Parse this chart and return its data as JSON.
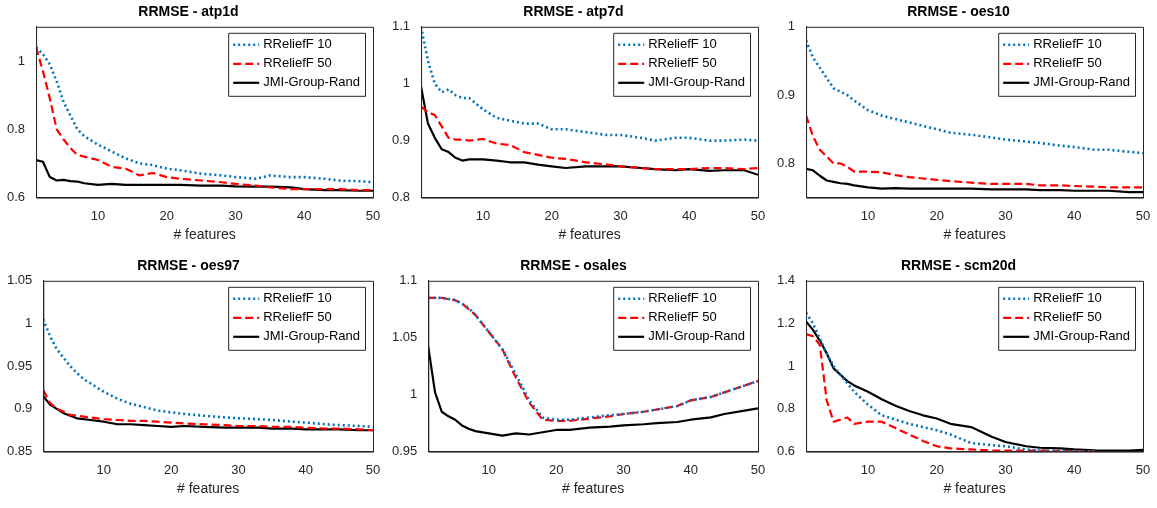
{
  "chart_data": [
    {
      "type": "line",
      "title": "RRMSE - atp1d",
      "xlabel": "# features",
      "x": [
        1,
        2,
        3,
        4,
        5,
        6,
        7,
        8,
        10,
        12,
        14,
        16,
        18,
        20,
        22,
        25,
        28,
        30,
        33,
        35,
        38,
        40,
        43,
        45,
        48,
        50
      ],
      "xlim": [
        1,
        50
      ],
      "xticks": [
        10,
        20,
        30,
        40,
        50
      ],
      "ylim": [
        0.6,
        1.1
      ],
      "yticks": [
        0.6,
        0.8,
        1
      ],
      "grid": false,
      "legend": "top right",
      "marker": "none",
      "series": [
        {
          "name": "RReliefF 10",
          "color": "#0072bd",
          "line_style": "dotted",
          "values": [
            1.04,
            1.02,
            0.99,
            0.94,
            0.88,
            0.84,
            0.8,
            0.78,
            0.755,
            0.735,
            0.715,
            0.7,
            0.695,
            0.685,
            0.68,
            0.67,
            0.665,
            0.66,
            0.655,
            0.665,
            0.66,
            0.66,
            0.655,
            0.65,
            0.648,
            0.645
          ]
        },
        {
          "name": "RReliefF 50",
          "color": "#ff0000",
          "line_style": "dashed",
          "values": [
            1.04,
            0.97,
            0.89,
            0.8,
            0.77,
            0.745,
            0.725,
            0.72,
            0.71,
            0.69,
            0.685,
            0.665,
            0.672,
            0.66,
            0.655,
            0.65,
            0.645,
            0.64,
            0.635,
            0.63,
            0.625,
            0.625,
            0.625,
            0.625,
            0.622,
            0.622
          ]
        },
        {
          "name": "JMI-Group-Rand",
          "color": "#000000",
          "line_style": "solid",
          "values": [
            0.71,
            0.705,
            0.66,
            0.65,
            0.652,
            0.648,
            0.647,
            0.642,
            0.637,
            0.64,
            0.637,
            0.637,
            0.637,
            0.637,
            0.637,
            0.635,
            0.635,
            0.633,
            0.632,
            0.632,
            0.63,
            0.625,
            0.622,
            0.622,
            0.62,
            0.62
          ]
        }
      ]
    },
    {
      "type": "line",
      "title": "RRMSE - atp7d",
      "xlabel": "# features",
      "x": [
        1,
        2,
        3,
        4,
        5,
        6,
        7,
        8,
        10,
        12,
        14,
        16,
        18,
        20,
        22,
        25,
        28,
        30,
        33,
        35,
        38,
        40,
        43,
        45,
        48,
        50
      ],
      "xlim": [
        1,
        50
      ],
      "xticks": [
        10,
        20,
        30,
        40,
        50
      ],
      "ylim": [
        0.8,
        1.1
      ],
      "yticks": [
        0.8,
        0.9,
        1,
        1.1
      ],
      "grid": false,
      "legend": "top right",
      "marker": "none",
      "series": [
        {
          "name": "RReliefF 10",
          "color": "#0072bd",
          "line_style": "dotted",
          "values": [
            1.1,
            1.04,
            1.0,
            0.985,
            0.99,
            0.98,
            0.975,
            0.975,
            0.955,
            0.94,
            0.935,
            0.93,
            0.93,
            0.92,
            0.92,
            0.915,
            0.91,
            0.91,
            0.905,
            0.9,
            0.905,
            0.905,
            0.9,
            0.9,
            0.902,
            0.9
          ]
        },
        {
          "name": "RReliefF 50",
          "color": "#ff0000",
          "line_style": "dashed",
          "values": [
            0.96,
            0.95,
            0.945,
            0.925,
            0.905,
            0.902,
            0.902,
            0.9,
            0.903,
            0.895,
            0.892,
            0.88,
            0.875,
            0.87,
            0.868,
            0.862,
            0.858,
            0.855,
            0.852,
            0.85,
            0.85,
            0.85,
            0.852,
            0.852,
            0.85,
            0.852
          ]
        },
        {
          "name": "JMI-Group-Rand",
          "color": "#000000",
          "line_style": "solid",
          "values": [
            0.995,
            0.93,
            0.905,
            0.885,
            0.88,
            0.87,
            0.865,
            0.867,
            0.867,
            0.865,
            0.862,
            0.862,
            0.858,
            0.855,
            0.852,
            0.855,
            0.855,
            0.855,
            0.852,
            0.85,
            0.848,
            0.85,
            0.847,
            0.848,
            0.848,
            0.84
          ]
        }
      ]
    },
    {
      "type": "line",
      "title": "RRMSE - oes10",
      "xlabel": "# features",
      "x": [
        1,
        2,
        3,
        4,
        5,
        6,
        7,
        8,
        10,
        12,
        14,
        16,
        18,
        20,
        22,
        25,
        28,
        30,
        33,
        35,
        38,
        40,
        43,
        45,
        48,
        50
      ],
      "xlim": [
        1,
        50
      ],
      "xticks": [
        10,
        20,
        30,
        40,
        50
      ],
      "ylim": [
        0.75,
        1
      ],
      "yticks": [
        0.8,
        0.9,
        1
      ],
      "grid": false,
      "legend": "top right",
      "marker": "none",
      "series": [
        {
          "name": "RReliefF 10",
          "color": "#0072bd",
          "line_style": "dotted",
          "values": [
            0.98,
            0.955,
            0.94,
            0.925,
            0.91,
            0.905,
            0.9,
            0.892,
            0.878,
            0.87,
            0.865,
            0.86,
            0.855,
            0.85,
            0.845,
            0.842,
            0.838,
            0.835,
            0.832,
            0.83,
            0.826,
            0.824,
            0.82,
            0.82,
            0.817,
            0.815
          ]
        },
        {
          "name": "RReliefF 50",
          "color": "#ff0000",
          "line_style": "dashed",
          "values": [
            0.87,
            0.84,
            0.82,
            0.81,
            0.8,
            0.8,
            0.795,
            0.788,
            0.788,
            0.787,
            0.783,
            0.78,
            0.778,
            0.776,
            0.774,
            0.772,
            0.77,
            0.77,
            0.77,
            0.768,
            0.768,
            0.767,
            0.766,
            0.765,
            0.765,
            0.765
          ]
        },
        {
          "name": "JMI-Group-Rand",
          "color": "#000000",
          "line_style": "solid",
          "values": [
            0.792,
            0.79,
            0.782,
            0.775,
            0.773,
            0.771,
            0.77,
            0.768,
            0.765,
            0.763,
            0.764,
            0.763,
            0.763,
            0.763,
            0.763,
            0.763,
            0.762,
            0.762,
            0.762,
            0.761,
            0.761,
            0.76,
            0.76,
            0.76,
            0.758,
            0.758
          ]
        }
      ]
    },
    {
      "type": "line",
      "title": "RRMSE - oes97",
      "xlabel": "# features",
      "x": [
        1,
        2,
        3,
        4,
        5,
        6,
        7,
        8,
        10,
        12,
        14,
        16,
        18,
        20,
        22,
        25,
        28,
        30,
        33,
        35,
        38,
        40,
        43,
        45,
        48,
        50
      ],
      "xlim": [
        1,
        50
      ],
      "xticks": [
        10,
        20,
        30,
        40,
        50
      ],
      "ylim": [
        0.85,
        1.05
      ],
      "yticks": [
        0.85,
        0.9,
        0.95,
        1,
        1.05
      ],
      "grid": false,
      "legend": "top right",
      "marker": "none",
      "series": [
        {
          "name": "RReliefF 10",
          "color": "#0072bd",
          "line_style": "dotted",
          "values": [
            1.005,
            0.985,
            0.97,
            0.96,
            0.95,
            0.942,
            0.935,
            0.93,
            0.92,
            0.912,
            0.906,
            0.902,
            0.898,
            0.896,
            0.894,
            0.892,
            0.89,
            0.889,
            0.888,
            0.887,
            0.885,
            0.884,
            0.882,
            0.881,
            0.88,
            0.879
          ]
        },
        {
          "name": "RReliefF 50",
          "color": "#ff0000",
          "line_style": "dashed",
          "values": [
            0.922,
            0.907,
            0.9,
            0.897,
            0.893,
            0.892,
            0.891,
            0.89,
            0.888,
            0.887,
            0.886,
            0.886,
            0.885,
            0.884,
            0.883,
            0.882,
            0.881,
            0.88,
            0.88,
            0.879,
            0.879,
            0.878,
            0.877,
            0.877,
            0.876,
            0.875
          ]
        },
        {
          "name": "JMI-Group-Rand",
          "color": "#000000",
          "line_style": "solid",
          "values": [
            0.915,
            0.905,
            0.9,
            0.895,
            0.892,
            0.889,
            0.888,
            0.887,
            0.885,
            0.882,
            0.882,
            0.881,
            0.88,
            0.879,
            0.88,
            0.879,
            0.878,
            0.878,
            0.878,
            0.877,
            0.877,
            0.876,
            0.876,
            0.876,
            0.875,
            0.875
          ]
        }
      ]
    },
    {
      "type": "line",
      "title": "RRMSE - osales",
      "xlabel": "# features",
      "x": [
        1,
        2,
        3,
        4,
        5,
        6,
        7,
        8,
        10,
        12,
        14,
        16,
        18,
        20,
        22,
        25,
        28,
        30,
        33,
        35,
        38,
        40,
        43,
        45,
        48,
        50
      ],
      "xlim": [
        1,
        50
      ],
      "xticks": [
        10,
        20,
        30,
        40,
        50
      ],
      "ylim": [
        0.95,
        1.1
      ],
      "yticks": [
        0.95,
        1,
        1.05,
        1.1
      ],
      "grid": false,
      "legend": "top right",
      "marker": "none",
      "series": [
        {
          "name": "RReliefF 10",
          "color": "#0072bd",
          "line_style": "dotted",
          "values": [
            1.085,
            1.085,
            1.085,
            1.084,
            1.083,
            1.08,
            1.076,
            1.07,
            1.055,
            1.04,
            1.018,
            0.995,
            0.98,
            0.978,
            0.978,
            0.98,
            0.982,
            0.983,
            0.985,
            0.987,
            0.99,
            0.995,
            0.998,
            1.002,
            1.008,
            1.012
          ]
        },
        {
          "name": "RReliefF 50",
          "color": "#ff0000",
          "line_style": "dashed",
          "values": [
            1.085,
            1.085,
            1.085,
            1.084,
            1.083,
            1.08,
            1.075,
            1.07,
            1.055,
            1.04,
            1.015,
            0.993,
            0.978,
            0.977,
            0.977,
            0.979,
            0.981,
            0.983,
            0.985,
            0.987,
            0.99,
            0.995,
            0.998,
            1.002,
            1.008,
            1.012
          ]
        },
        {
          "name": "JMI-Group-Rand",
          "color": "#000000",
          "line_style": "solid",
          "values": [
            1.042,
            1.002,
            0.985,
            0.981,
            0.978,
            0.973,
            0.97,
            0.968,
            0.966,
            0.964,
            0.966,
            0.965,
            0.967,
            0.969,
            0.969,
            0.971,
            0.972,
            0.973,
            0.974,
            0.975,
            0.976,
            0.978,
            0.98,
            0.983,
            0.986,
            0.988
          ]
        }
      ]
    },
    {
      "type": "line",
      "title": "RRMSE - scm20d",
      "xlabel": "# features",
      "x": [
        1,
        2,
        3,
        4,
        5,
        6,
        7,
        8,
        10,
        12,
        14,
        16,
        18,
        20,
        22,
        25,
        28,
        30,
        33,
        35,
        38,
        40,
        43,
        45,
        48,
        50
      ],
      "xlim": [
        1,
        50
      ],
      "xticks": [
        10,
        20,
        30,
        40,
        50
      ],
      "ylim": [
        0.6,
        1.4
      ],
      "yticks": [
        0.6,
        0.8,
        1,
        1.2,
        1.4
      ],
      "grid": false,
      "legend": "top right",
      "marker": "none",
      "series": [
        {
          "name": "RReliefF 10",
          "color": "#0072bd",
          "line_style": "dotted",
          "values": [
            1.25,
            1.2,
            1.13,
            1.06,
            1.0,
            0.96,
            0.92,
            0.88,
            0.82,
            0.77,
            0.75,
            0.73,
            0.715,
            0.7,
            0.68,
            0.64,
            0.63,
            0.625,
            0.61,
            0.605,
            0.603,
            0.602,
            0.601,
            null,
            null,
            null
          ]
        },
        {
          "name": "RReliefF 50",
          "color": "#ff0000",
          "line_style": "dashed",
          "values": [
            1.15,
            1.14,
            1.1,
            0.84,
            0.74,
            0.75,
            0.76,
            0.73,
            0.74,
            0.74,
            0.71,
            0.68,
            0.65,
            0.625,
            0.615,
            0.61,
            0.605,
            0.605,
            0.605,
            0.605,
            0.603,
            0.602,
            0.601,
            null,
            null,
            null
          ]
        },
        {
          "name": "JMI-Group-Rand",
          "color": "#000000",
          "line_style": "solid",
          "values": [
            1.21,
            1.17,
            1.12,
            1.06,
            0.99,
            0.96,
            0.93,
            0.91,
            0.88,
            0.845,
            0.815,
            0.79,
            0.77,
            0.755,
            0.73,
            0.715,
            0.67,
            0.645,
            0.625,
            0.618,
            0.615,
            0.61,
            0.606,
            0.605,
            0.605,
            0.608
          ]
        }
      ]
    }
  ]
}
